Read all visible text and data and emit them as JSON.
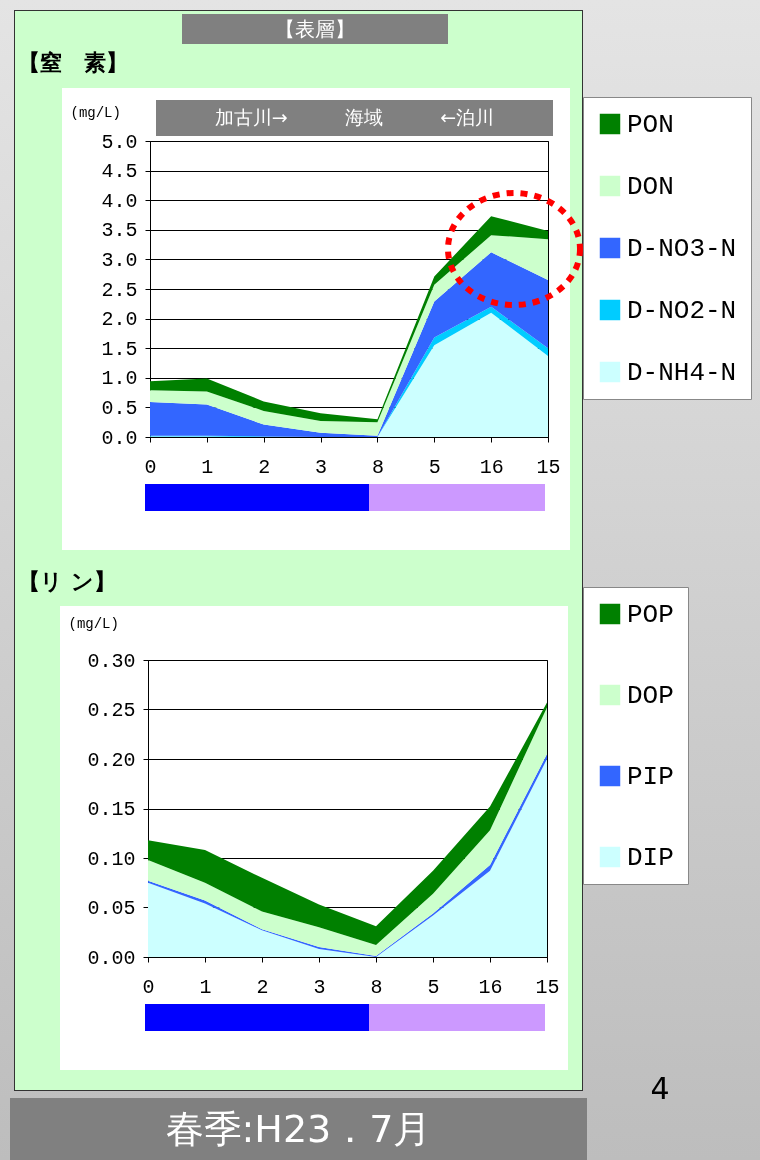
{
  "chart_data": [
    {
      "type": "area",
      "title": "【窒　素】",
      "ylabel": "(mg/L)",
      "stacked": true,
      "grid": "y",
      "legend": "right",
      "annotations": [
        "【表層】",
        "加古川→",
        "海域",
        "←泊川"
      ],
      "categories": [
        "0",
        "1",
        "2",
        "3",
        "8",
        "5",
        "16",
        "15"
      ],
      "ylim": [
        0,
        5
      ],
      "yticks": [
        {
          "value": 0,
          "label": "0.0"
        },
        {
          "value": 0.5,
          "label": "0.5"
        },
        {
          "value": 1,
          "label": "1.0"
        },
        {
          "value": 1.5,
          "label": "1.5"
        },
        {
          "value": 2,
          "label": "2.0"
        },
        {
          "value": 2.5,
          "label": "2.5"
        },
        {
          "value": 3,
          "label": "3.0"
        },
        {
          "value": 3.5,
          "label": "3.5"
        },
        {
          "value": 4,
          "label": "4.0"
        },
        {
          "value": 4.5,
          "label": "4.5"
        },
        {
          "value": 5,
          "label": "5.0"
        }
      ],
      "series": [
        {
          "name": "D-NH4-N",
          "color": "#ccffff",
          "values": [
            0.01,
            0.01,
            0,
            0,
            0,
            1.55,
            2.1,
            1.37
          ]
        },
        {
          "name": "D-NO2-N",
          "color": "#00ccff",
          "values": [
            0.01,
            0.01,
            0.01,
            0,
            0,
            0.13,
            0.1,
            0.13
          ]
        },
        {
          "name": "D-NO3-N",
          "color": "#3366ff",
          "values": [
            0.57,
            0.53,
            0.2,
            0.07,
            0.02,
            0.61,
            0.92,
            1.15
          ]
        },
        {
          "name": "DON",
          "color": "#ccffcc",
          "values": [
            0.2,
            0.22,
            0.23,
            0.2,
            0.23,
            0.28,
            0.29,
            0.69
          ]
        },
        {
          "name": "PON",
          "color": "#008000",
          "values": [
            0.15,
            0.22,
            0.16,
            0.13,
            0.05,
            0.14,
            0.32,
            0.14
          ]
        }
      ]
    },
    {
      "type": "area",
      "title": "【リ ン】",
      "ylabel": "(mg/L)",
      "stacked": true,
      "grid": "y",
      "legend": "right",
      "annotations": [
        "4",
        "春季:H23．7月"
      ],
      "categories": [
        "0",
        "1",
        "2",
        "3",
        "8",
        "5",
        "16",
        "15"
      ],
      "ylim": [
        0,
        0.3
      ],
      "yticks": [
        {
          "value": 0,
          "label": "0.00"
        },
        {
          "value": 0.05,
          "label": "0.05"
        },
        {
          "value": 0.1,
          "label": "0.10"
        },
        {
          "value": 0.15,
          "label": "0.15"
        },
        {
          "value": 0.2,
          "label": "0.20"
        },
        {
          "value": 0.25,
          "label": "0.25"
        },
        {
          "value": 0.3,
          "label": "0.30"
        }
      ],
      "series": [
        {
          "name": "DIP",
          "color": "#ccffff",
          "values": [
            0.075,
            0.054,
            0.027,
            0.008,
            0,
            0.042,
            0.087,
            0.2
          ]
        },
        {
          "name": "PIP",
          "color": "#3366ff",
          "values": [
            0.002,
            0.003,
            0.001,
            0.002,
            0.001,
            0.002,
            0.006,
            0.005
          ]
        },
        {
          "name": "DOP",
          "color": "#ccffcc",
          "values": [
            0.021,
            0.018,
            0.018,
            0.02,
            0.011,
            0.02,
            0.035,
            0.047
          ]
        },
        {
          "name": "POP",
          "color": "#008000",
          "values": [
            0.02,
            0.033,
            0.034,
            0.023,
            0.019,
            0.023,
            0.024,
            0.005
          ]
        }
      ]
    }
  ]
}
